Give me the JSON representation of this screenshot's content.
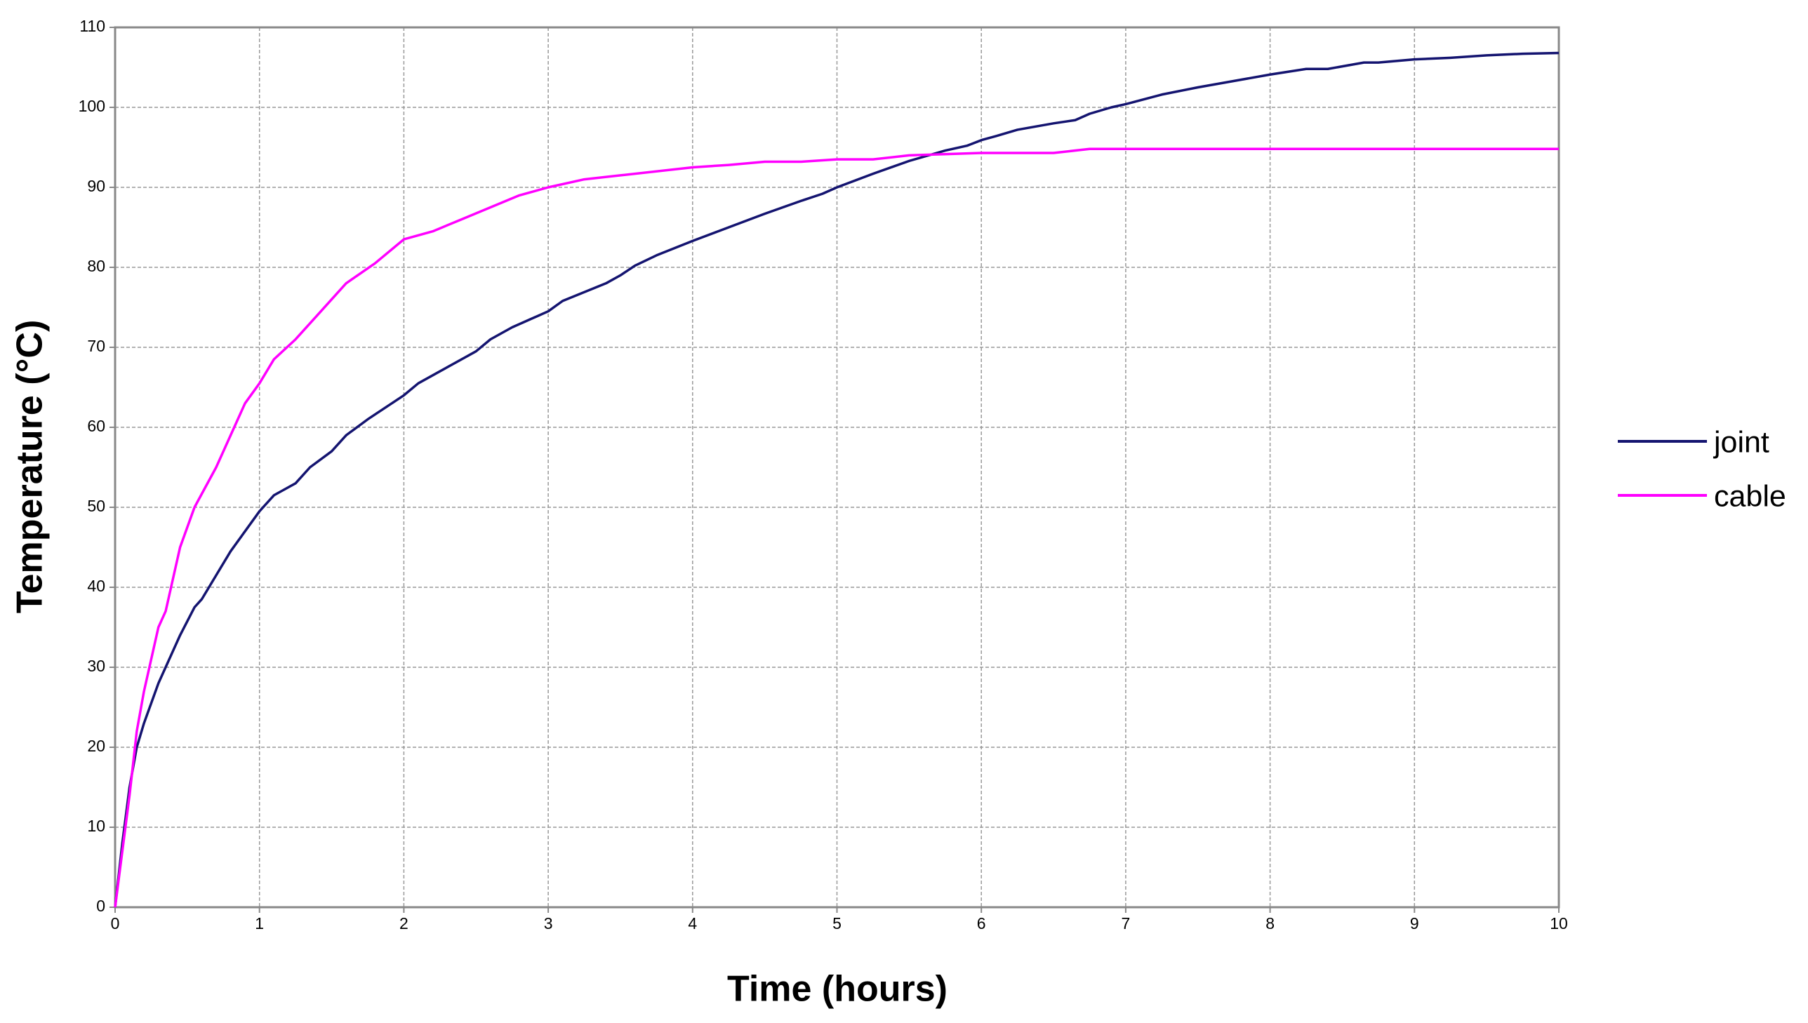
{
  "chart_data": {
    "type": "line",
    "x_label": "Time (hours)",
    "y_label": "Temperature (°C)",
    "xlim": [
      0,
      10
    ],
    "xticks": [
      0,
      1,
      2,
      3,
      4,
      5,
      6,
      7,
      8,
      9,
      10
    ],
    "ylim": [
      0,
      110
    ],
    "yticks": [
      0,
      10,
      20,
      30,
      40,
      50,
      60,
      70,
      80,
      90,
      100,
      110
    ],
    "grid": true,
    "legend": "right",
    "series": [
      {
        "name": "joint",
        "color": "#141470",
        "x": [
          0,
          0.05,
          0.1,
          0.15,
          0.2,
          0.3,
          0.35,
          0.4,
          0.45,
          0.55,
          0.6,
          0.7,
          0.8,
          0.9,
          1,
          1.1,
          1.2,
          1.25,
          1.35,
          1.5,
          1.6,
          1.75,
          2,
          2.1,
          2.25,
          2.5,
          2.6,
          2.75,
          3,
          3.1,
          3.4,
          3.5,
          3.6,
          3.75,
          4,
          4.25,
          4.5,
          4.75,
          4.9,
          5,
          5.25,
          5.5,
          5.75,
          5.9,
          6,
          6.1,
          6.25,
          6.5,
          6.65,
          6.75,
          6.9,
          7,
          7.25,
          7.5,
          7.75,
          8,
          8.25,
          8.4,
          8.65,
          8.75,
          9,
          9.25,
          9.5,
          9.75,
          10
        ],
        "values": [
          0,
          8,
          15,
          20,
          23,
          28,
          30,
          32,
          34,
          37.5,
          38.5,
          41.5,
          44.5,
          47,
          49.5,
          51.5,
          52.5,
          53,
          55,
          57,
          59,
          61,
          64,
          65.5,
          67,
          69.5,
          71,
          72.5,
          74.5,
          75.8,
          78,
          79,
          80.2,
          81.5,
          83.3,
          85,
          86.7,
          88.3,
          89.2,
          90,
          91.7,
          93.3,
          94.6,
          95.2,
          95.9,
          96.4,
          97.2,
          98,
          98.4,
          99.2,
          100,
          100.4,
          101.6,
          102.5,
          103.3,
          104.1,
          104.8,
          104.8,
          105.6,
          105.6,
          106,
          106.2,
          106.5,
          106.7,
          106.8
        ]
      },
      {
        "name": "cable",
        "color": "#ff00ff",
        "x": [
          0,
          0.05,
          0.1,
          0.15,
          0.2,
          0.3,
          0.35,
          0.4,
          0.45,
          0.55,
          0.7,
          0.8,
          0.9,
          1,
          1.1,
          1.25,
          1.4,
          1.6,
          1.8,
          2,
          2.2,
          2.4,
          2.6,
          2.8,
          3,
          3.25,
          3.5,
          4,
          4.25,
          4.5,
          4.75,
          5,
          5.25,
          5.5,
          6,
          6.5,
          6.75,
          7,
          8,
          9,
          10
        ],
        "values": [
          0,
          7,
          14,
          22,
          27,
          35,
          37,
          41,
          45,
          50,
          55,
          59,
          63,
          65.5,
          68.5,
          71,
          74,
          78,
          80.5,
          83.5,
          84.5,
          86,
          87.5,
          89,
          90,
          91,
          91.5,
          92.5,
          92.8,
          93.2,
          93.2,
          93.5,
          93.5,
          94,
          94.3,
          94.3,
          94.8,
          94.8,
          94.8,
          94.8,
          94.8
        ]
      }
    ]
  }
}
